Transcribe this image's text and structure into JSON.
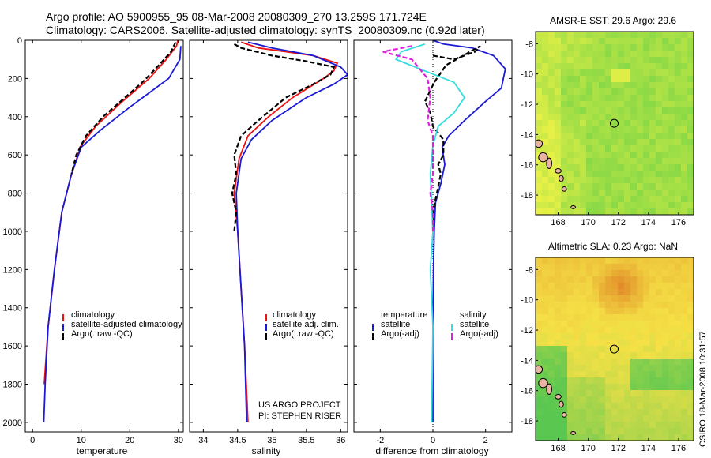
{
  "header": {
    "line1": "Argo profile: AO 5900955_95 08-Mar-2008 20080309_270 13.259S 171.724E",
    "line2": "Climatology: CARS2006. Satellite-adjusted climatology: synTS_20080309.nc (0.92d later)"
  },
  "footer": {
    "project": "US ARGO PROJECT",
    "pi": "PI: STEPHEN RISER",
    "credit": "CSIRO 18-Mar-2008 10:31:57"
  },
  "colors": {
    "red": "#ee1111",
    "blue": "#1a1ad4",
    "black": "#000000",
    "cyan": "#33dddd",
    "magenta": "#dd22dd"
  },
  "chart_data": [
    {
      "type": "line",
      "id": "temperature",
      "xlabel": "temperature",
      "ylabel": "",
      "xlim": [
        -1.5,
        31
      ],
      "ylim": [
        2050,
        0
      ],
      "xticks": [
        0,
        10,
        20,
        30
      ],
      "xtick_labels": [
        "0",
        "10",
        "20",
        "30"
      ],
      "yticks": [
        0,
        200,
        400,
        600,
        800,
        1000,
        1200,
        1400,
        1600,
        1800,
        2000
      ],
      "ytick_labels": [
        "0",
        "200",
        "400",
        "600",
        "800",
        "1000",
        "1200",
        "1400",
        "1600",
        "1800",
        "2000"
      ],
      "legend": [
        "climatology",
        "satellite-adjusted climatology",
        "Argo(..raw -QC)"
      ],
      "series": [
        {
          "name": "climatology",
          "color": "red",
          "dash": "solid",
          "points": [
            [
              29.9,
              0
            ],
            [
              29.6,
              30
            ],
            [
              27.5,
              100
            ],
            [
              24,
              200
            ],
            [
              18.5,
              320
            ],
            [
              13,
              450
            ],
            [
              10,
              550
            ],
            [
              8,
              700
            ],
            [
              6,
              900
            ],
            [
              4.5,
              1200
            ],
            [
              3.2,
              1500
            ],
            [
              2.4,
              1800
            ]
          ]
        },
        {
          "name": "satellite-adjusted climatology",
          "color": "blue",
          "dash": "solid",
          "points": [
            [
              30.5,
              30
            ],
            [
              30.3,
              100
            ],
            [
              28,
              200
            ],
            [
              20,
              350
            ],
            [
              14,
              470
            ],
            [
              10,
              560
            ],
            [
              8,
              700
            ],
            [
              6,
              900
            ],
            [
              4.5,
              1200
            ],
            [
              3.2,
              1500
            ],
            [
              2.6,
              1800
            ],
            [
              2.3,
              2000
            ]
          ]
        },
        {
          "name": "Argo(..raw -QC)",
          "color": "black",
          "dash": "dash",
          "points": [
            [
              29.4,
              10
            ],
            [
              28.5,
              60
            ],
            [
              26,
              130
            ],
            [
              23,
              210
            ],
            [
              19,
              300
            ],
            [
              14.5,
              400
            ],
            [
              11,
              500
            ],
            [
              9,
              600
            ],
            [
              8,
              700
            ]
          ]
        }
      ]
    },
    {
      "type": "line",
      "id": "salinity",
      "xlabel": "salinity",
      "ylabel": "",
      "xlim": [
        33.8,
        36.1
      ],
      "ylim": [
        2050,
        0
      ],
      "xticks": [
        34,
        34.5,
        35,
        35.5,
        36
      ],
      "xtick_labels": [
        "34",
        "34.5",
        "35",
        "35.5",
        "36"
      ],
      "legend": [
        "climatology",
        "satellite adj. clim.",
        "Argo(..raw -QC)"
      ],
      "series": [
        {
          "name": "climatology",
          "color": "red",
          "dash": "solid",
          "points": [
            [
              34.55,
              10
            ],
            [
              34.8,
              40
            ],
            [
              35.6,
              80
            ],
            [
              35.95,
              120
            ],
            [
              35.9,
              160
            ],
            [
              35.75,
              200
            ],
            [
              35.3,
              300
            ],
            [
              34.95,
              400
            ],
            [
              34.65,
              500
            ],
            [
              34.52,
              620
            ],
            [
              34.45,
              800
            ],
            [
              34.5,
              1000
            ],
            [
              34.55,
              1300
            ],
            [
              34.6,
              1600
            ],
            [
              34.65,
              2000
            ]
          ]
        },
        {
          "name": "satellite adj. clim.",
          "color": "blue",
          "dash": "solid",
          "points": [
            [
              34.65,
              10
            ],
            [
              35.0,
              40
            ],
            [
              35.6,
              80
            ],
            [
              36.0,
              140
            ],
            [
              36.1,
              180
            ],
            [
              35.9,
              230
            ],
            [
              35.5,
              300
            ],
            [
              35.0,
              420
            ],
            [
              34.7,
              520
            ],
            [
              34.55,
              620
            ],
            [
              34.48,
              800
            ],
            [
              34.5,
              1000
            ],
            [
              34.55,
              1300
            ],
            [
              34.6,
              1600
            ],
            [
              34.63,
              2000
            ]
          ]
        },
        {
          "name": "Argo(..raw -QC)",
          "color": "black",
          "dash": "dash",
          "points": [
            [
              34.45,
              20
            ],
            [
              34.55,
              40
            ],
            [
              35.0,
              80
            ],
            [
              35.5,
              110
            ],
            [
              35.9,
              140
            ],
            [
              35.85,
              180
            ],
            [
              35.6,
              230
            ],
            [
              35.2,
              300
            ],
            [
              34.8,
              420
            ],
            [
              34.55,
              500
            ],
            [
              34.45,
              600
            ],
            [
              34.48,
              700
            ],
            [
              34.42,
              800
            ],
            [
              34.48,
              900
            ],
            [
              34.45,
              1000
            ]
          ]
        }
      ]
    },
    {
      "type": "line",
      "id": "difference",
      "xlabel": "difference from climatology",
      "ylabel": "",
      "xlim": [
        -3,
        3
      ],
      "ylim": [
        2050,
        0
      ],
      "xticks": [
        -2,
        0,
        2
      ],
      "xtick_labels": [
        "-2",
        "0",
        "2"
      ],
      "legend_headers": [
        "temperature",
        "salinity"
      ],
      "legend": [
        "satellite",
        "Argo(-adj)",
        "satellite",
        "Argo(-adj)"
      ],
      "series": [
        {
          "name": "temperature satellite",
          "color": "blue",
          "dash": "solid",
          "points": [
            [
              0,
              0
            ],
            [
              0.4,
              20
            ],
            [
              1.5,
              40
            ],
            [
              2.3,
              80
            ],
            [
              2.75,
              150
            ],
            [
              2.6,
              250
            ],
            [
              2.0,
              320
            ],
            [
              1.2,
              420
            ],
            [
              0.6,
              500
            ],
            [
              0.35,
              560
            ],
            [
              0.45,
              650
            ],
            [
              0.3,
              750
            ],
            [
              0.1,
              850
            ],
            [
              0.05,
              1000
            ],
            [
              0.02,
              1200
            ],
            [
              0,
              1500
            ],
            [
              0,
              2000
            ]
          ]
        },
        {
          "name": "temperature Argo(-adj)",
          "color": "black",
          "dash": "dash",
          "points": [
            [
              0,
              80
            ],
            [
              0.8,
              100
            ],
            [
              1.6,
              60
            ],
            [
              1.8,
              30
            ],
            [
              0.5,
              130
            ],
            [
              0.05,
              220
            ],
            [
              -0.3,
              320
            ],
            [
              -0.1,
              380
            ],
            [
              0,
              450
            ],
            [
              0.4,
              520
            ],
            [
              0.4,
              600
            ],
            [
              0.2,
              650
            ],
            [
              0.3,
              700
            ],
            [
              0.15,
              800
            ],
            [
              0,
              900
            ],
            [
              0,
              1000
            ]
          ]
        },
        {
          "name": "salinity satellite",
          "color": "cyan",
          "dash": "solid",
          "points": [
            [
              -0.3,
              20
            ],
            [
              -1.2,
              60
            ],
            [
              -1.4,
              100
            ],
            [
              -0.5,
              150
            ],
            [
              0.8,
              220
            ],
            [
              1.2,
              300
            ],
            [
              0.8,
              380
            ],
            [
              0.2,
              450
            ],
            [
              0,
              550
            ],
            [
              -0.1,
              700
            ],
            [
              0,
              1000
            ],
            [
              -0.1,
              1200
            ],
            [
              0,
              1500
            ],
            [
              -0.05,
              2000
            ]
          ]
        },
        {
          "name": "salinity Argo(-adj)",
          "color": "magenta",
          "dash": "dash",
          "points": [
            [
              -0.8,
              30
            ],
            [
              -1.9,
              60
            ],
            [
              -0.8,
              100
            ],
            [
              -0.2,
              200
            ],
            [
              -0.1,
              300
            ],
            [
              -0.2,
              420
            ],
            [
              0,
              500
            ],
            [
              0,
              700
            ],
            [
              -0.1,
              800
            ],
            [
              0,
              900
            ],
            [
              0,
              1000
            ]
          ]
        }
      ]
    },
    {
      "type": "heatmap",
      "id": "sst-map",
      "title": "AMSR-E SST: 29.6 Argo: 29.6",
      "xlim": [
        166.5,
        177
      ],
      "ylim": [
        -19.3,
        -7.2
      ],
      "xticks": [
        168,
        170,
        172,
        174,
        176
      ],
      "xtick_labels": [
        "168",
        "170",
        "172",
        "174",
        "176"
      ],
      "yticks": [
        -8,
        -10,
        -12,
        -14,
        -16,
        -18
      ],
      "ytick_labels": [
        "-8",
        "-10",
        "-12",
        "-14",
        "-16",
        "-18"
      ],
      "float_position": [
        171.724,
        -13.259
      ],
      "palette": "green-yellow"
    },
    {
      "type": "heatmap",
      "id": "sla-map",
      "title": "Altimetric SLA: 0.23 Argo: NaN",
      "xlim": [
        166.5,
        177
      ],
      "ylim": [
        -19.3,
        -7.2
      ],
      "xticks": [
        168,
        170,
        172,
        174,
        176
      ],
      "xtick_labels": [
        "168",
        "170",
        "172",
        "174",
        "176"
      ],
      "yticks": [
        -8,
        -10,
        -12,
        -14,
        -16,
        -18
      ],
      "ytick_labels": [
        "-8",
        "-10",
        "-12",
        "-14",
        "-16",
        "-18"
      ],
      "float_position": [
        171.724,
        -13.259
      ],
      "palette": "orange-green"
    }
  ]
}
